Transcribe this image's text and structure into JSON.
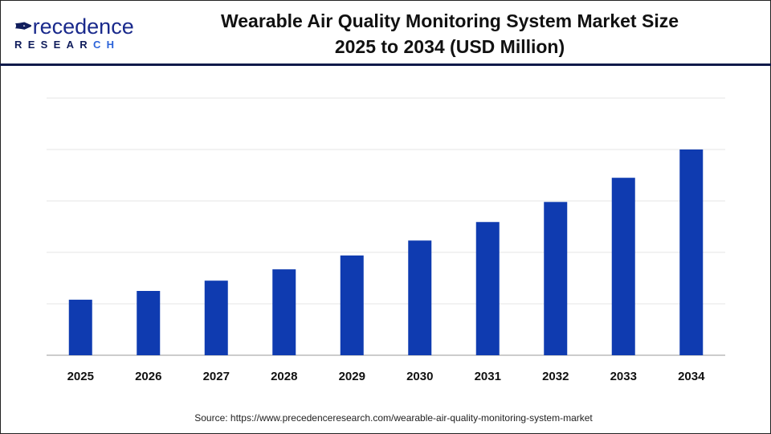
{
  "logo": {
    "text_top": "Precedence",
    "text_bottom": "RESEARCH"
  },
  "title_line1": "Wearable Air Quality Monitoring System Market Size",
  "title_line2": "2025 to 2034 (USD Million)",
  "source": "Source: https://www.precedenceresearch.com/wearable-air-quality-monitoring-system-market",
  "colors": {
    "bar": "#0f3bb0",
    "header_rule": "#0e1a4a",
    "grid": "#e6e6e6"
  },
  "chart_data": {
    "type": "bar",
    "title": "Wearable Air Quality Monitoring System Market Size 2025 to 2034 (USD Million)",
    "categories": [
      "2025",
      "2026",
      "2027",
      "2028",
      "2029",
      "2030",
      "2031",
      "2032",
      "2033",
      "2034"
    ],
    "values": [
      1.08,
      1.25,
      1.45,
      1.67,
      1.94,
      2.23,
      2.59,
      2.98,
      3.45,
      4.0
    ],
    "ylim": [
      0,
      5
    ],
    "grid": true,
    "y_tick_labels_shown": false
  }
}
